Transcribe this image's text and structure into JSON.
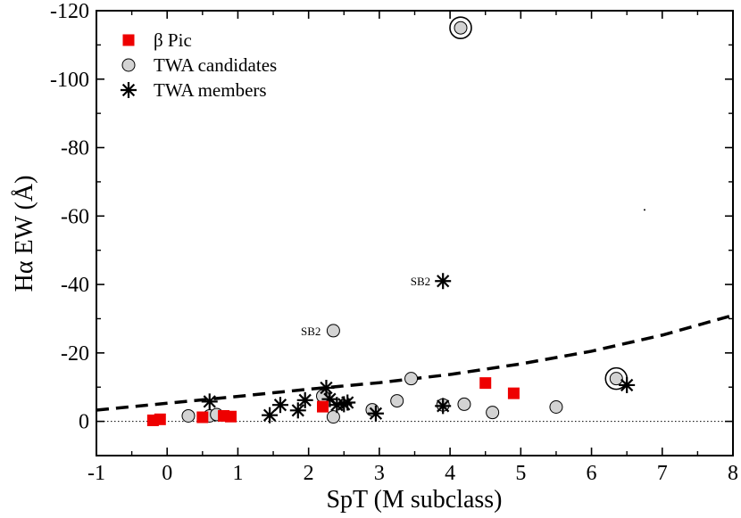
{
  "chart_data": {
    "type": "scatter",
    "title": "",
    "xlabel": "SpT (M subclass)",
    "ylabel": "Hα EW (Å)",
    "xlim": [
      -1,
      8
    ],
    "ylim": [
      10,
      -120
    ],
    "y_inverted": true,
    "xticks": [
      -1,
      0,
      1,
      2,
      3,
      4,
      5,
      6,
      7,
      8
    ],
    "xtick_labels": [
      "-1",
      "0",
      "1",
      "2",
      "3",
      "4",
      "5",
      "6",
      "7",
      "8"
    ],
    "yticks": [
      0,
      -20,
      -40,
      -60,
      -80,
      -100,
      -120
    ],
    "ytick_labels": [
      "0",
      "-20",
      "-40",
      "-60",
      "-80",
      "-100",
      "-120"
    ],
    "grid": false,
    "legend_position": "top-left",
    "series": [
      {
        "name": "β Pic",
        "marker": "square",
        "color": "#ee0000",
        "x": [
          -0.2,
          -0.1,
          0.5,
          0.8,
          0.9,
          2.2,
          4.5,
          4.9
        ],
        "y": [
          -0.3,
          -0.6,
          -1.2,
          -1.6,
          -1.4,
          -4.3,
          -11.2,
          -8.2
        ]
      },
      {
        "name": "TWA candidates",
        "marker": "circle",
        "color": "#d3d3d3",
        "x": [
          0.3,
          0.6,
          0.7,
          2.2,
          2.35,
          2.35,
          2.9,
          3.25,
          3.45,
          3.9,
          4.2,
          4.6,
          5.5,
          6.35,
          4.15
        ],
        "y": [
          -1.6,
          -1.6,
          -2.0,
          -7.4,
          -26.5,
          -1.3,
          -3.4,
          -6.0,
          -12.5,
          -4.8,
          -5.0,
          -2.6,
          -4.2,
          -12.5,
          -115.0
        ]
      },
      {
        "name": "TWA members",
        "marker": "asterisk",
        "color": "#000000",
        "x": [
          0.6,
          1.45,
          1.6,
          1.85,
          1.95,
          2.25,
          2.3,
          2.4,
          2.5,
          2.55,
          2.95,
          3.9,
          3.9,
          6.5
        ],
        "y": [
          -5.8,
          -1.8,
          -4.8,
          -3.2,
          -6.2,
          -9.8,
          -6.5,
          -4.8,
          -5.0,
          -5.5,
          -2.3,
          -4.5,
          -41.0,
          -10.6
        ]
      }
    ],
    "highlighted": [
      {
        "x": 4.15,
        "y": -115.0
      },
      {
        "x": 6.35,
        "y": -12.5
      }
    ],
    "reference_lines": [
      {
        "name": "saturation-curve",
        "style": "dashed",
        "x": [
          -1,
          0,
          1,
          2,
          3,
          4,
          5,
          6,
          7,
          8
        ],
        "y": [
          -3.3,
          -5.3,
          -7.3,
          -9.4,
          -11.3,
          -13.7,
          -16.8,
          -20.5,
          -25.2,
          -31.0
        ]
      },
      {
        "name": "zero-line",
        "style": "dotted",
        "y_value": 0
      }
    ],
    "annotations": [
      {
        "text": "SB2",
        "x": 3.9,
        "y": -41.0
      },
      {
        "text": "SB2",
        "x": 2.35,
        "y": -26.5
      }
    ]
  }
}
